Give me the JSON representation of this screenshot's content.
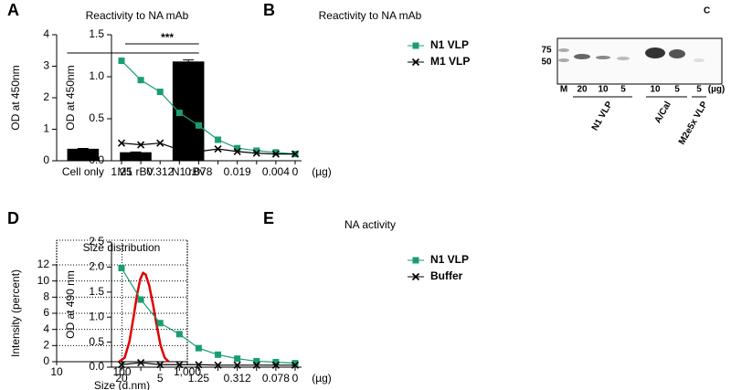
{
  "chart_data": [
    {
      "panel": "A",
      "type": "bar",
      "title": "Reactivity to NA mAb",
      "ylabel": "OD at 450nm",
      "categories": [
        "Cell only",
        "M1 rBV",
        "N1 rBv"
      ],
      "values": [
        0.38,
        0.27,
        3.15
      ],
      "errors": [
        0.01,
        0.01,
        0.05
      ],
      "color": "#000000",
      "ylim": [
        0,
        4
      ],
      "yticks": [
        0,
        1,
        2,
        3,
        4
      ],
      "annotation": "***"
    },
    {
      "panel": "B",
      "type": "line",
      "title": "Reactivity to NA mAb",
      "ylabel": "OD at 450nm",
      "xunit": "(µg)",
      "categories": [
        "1.25",
        null,
        "0.312",
        null,
        "0.078",
        null,
        "0.019",
        null,
        "0.004",
        "0"
      ],
      "series": [
        {
          "name": "N1 VLP",
          "color": "#1a9e6e",
          "marker": "square",
          "values": [
            1.19,
            0.96,
            0.82,
            0.57,
            0.42,
            0.25,
            0.15,
            0.12,
            0.1,
            0.08
          ]
        },
        {
          "name": "M1 VLP",
          "color": "#000000",
          "marker": "x",
          "values": [
            0.21,
            0.19,
            0.21,
            0.13,
            0.11,
            0.14,
            0.11,
            0.09,
            0.08,
            0.08
          ]
        }
      ],
      "ylim": [
        0,
        1.5
      ],
      "yticks": [
        {
          "value": 0,
          "label": "0.0"
        },
        {
          "value": 0.5,
          "label": "0.5"
        },
        {
          "value": 1,
          "label": "1.0"
        },
        {
          "value": 1.5,
          "label": "1.5"
        }
      ],
      "legend": "upper right"
    },
    {
      "panel": "D",
      "type": "line",
      "title": "Size distribution",
      "xlabel": "Size (d.nm)",
      "ylabel": "Intensity (percent)",
      "xscale": "log",
      "x": [
        90,
        110,
        130,
        150,
        170,
        190,
        210,
        230,
        260,
        300,
        340,
        390,
        450,
        520
      ],
      "series": [
        {
          "color": "#e00000",
          "values": [
            0,
            0.5,
            2.5,
            5.5,
            8.3,
            10.2,
            11,
            10.8,
            9.5,
            7,
            4.5,
            2,
            0.5,
            0
          ]
        }
      ],
      "xlim": [
        10,
        1000
      ],
      "xticks": [
        10,
        100,
        {
          "value": 1000,
          "label": "1,000"
        }
      ],
      "ylim": [
        0,
        12
      ],
      "yticks": [
        0,
        2,
        4,
        6,
        8,
        10,
        12
      ],
      "grid": true
    },
    {
      "panel": "E",
      "type": "line",
      "title": "NA activity",
      "ylabel": "OD at 490 nm",
      "xunit": "(µg)",
      "categories": [
        "20",
        null,
        "5",
        null,
        "1.25",
        null,
        "0.312",
        null,
        "0.078",
        "0"
      ],
      "series": [
        {
          "name": "N1 VLP",
          "color": "#1a9e6e",
          "marker": "square",
          "values": [
            1.98,
            1.35,
            0.88,
            0.66,
            0.38,
            0.25,
            0.17,
            0.12,
            0.1,
            0.08
          ]
        },
        {
          "name": "Buffer",
          "color": "#000000",
          "marker": "x",
          "values": [
            0.05,
            0.09,
            0.05,
            0.05,
            0.05,
            0.04,
            0.04,
            0.04,
            0.04,
            0.04
          ]
        }
      ],
      "ylim": [
        0,
        2.5
      ],
      "yticks": [
        {
          "value": 0,
          "label": "0.0"
        },
        {
          "value": 0.5,
          "label": "0.5"
        },
        {
          "value": 1,
          "label": "1.0"
        },
        {
          "value": 1.5,
          "label": "1.5"
        },
        {
          "value": 2,
          "label": "2.0"
        },
        {
          "value": 2.5,
          "label": "2.5"
        }
      ],
      "legend": "upper right"
    }
  ],
  "blot": {
    "panel": "C",
    "markers": [
      "75",
      "50"
    ],
    "lanes": [
      "M",
      "20",
      "10",
      "5",
      "10",
      "5",
      "5"
    ],
    "unit": "(µg)",
    "groups": [
      "N1 VLP",
      "A/Cal",
      "M2e5x VLP"
    ]
  }
}
